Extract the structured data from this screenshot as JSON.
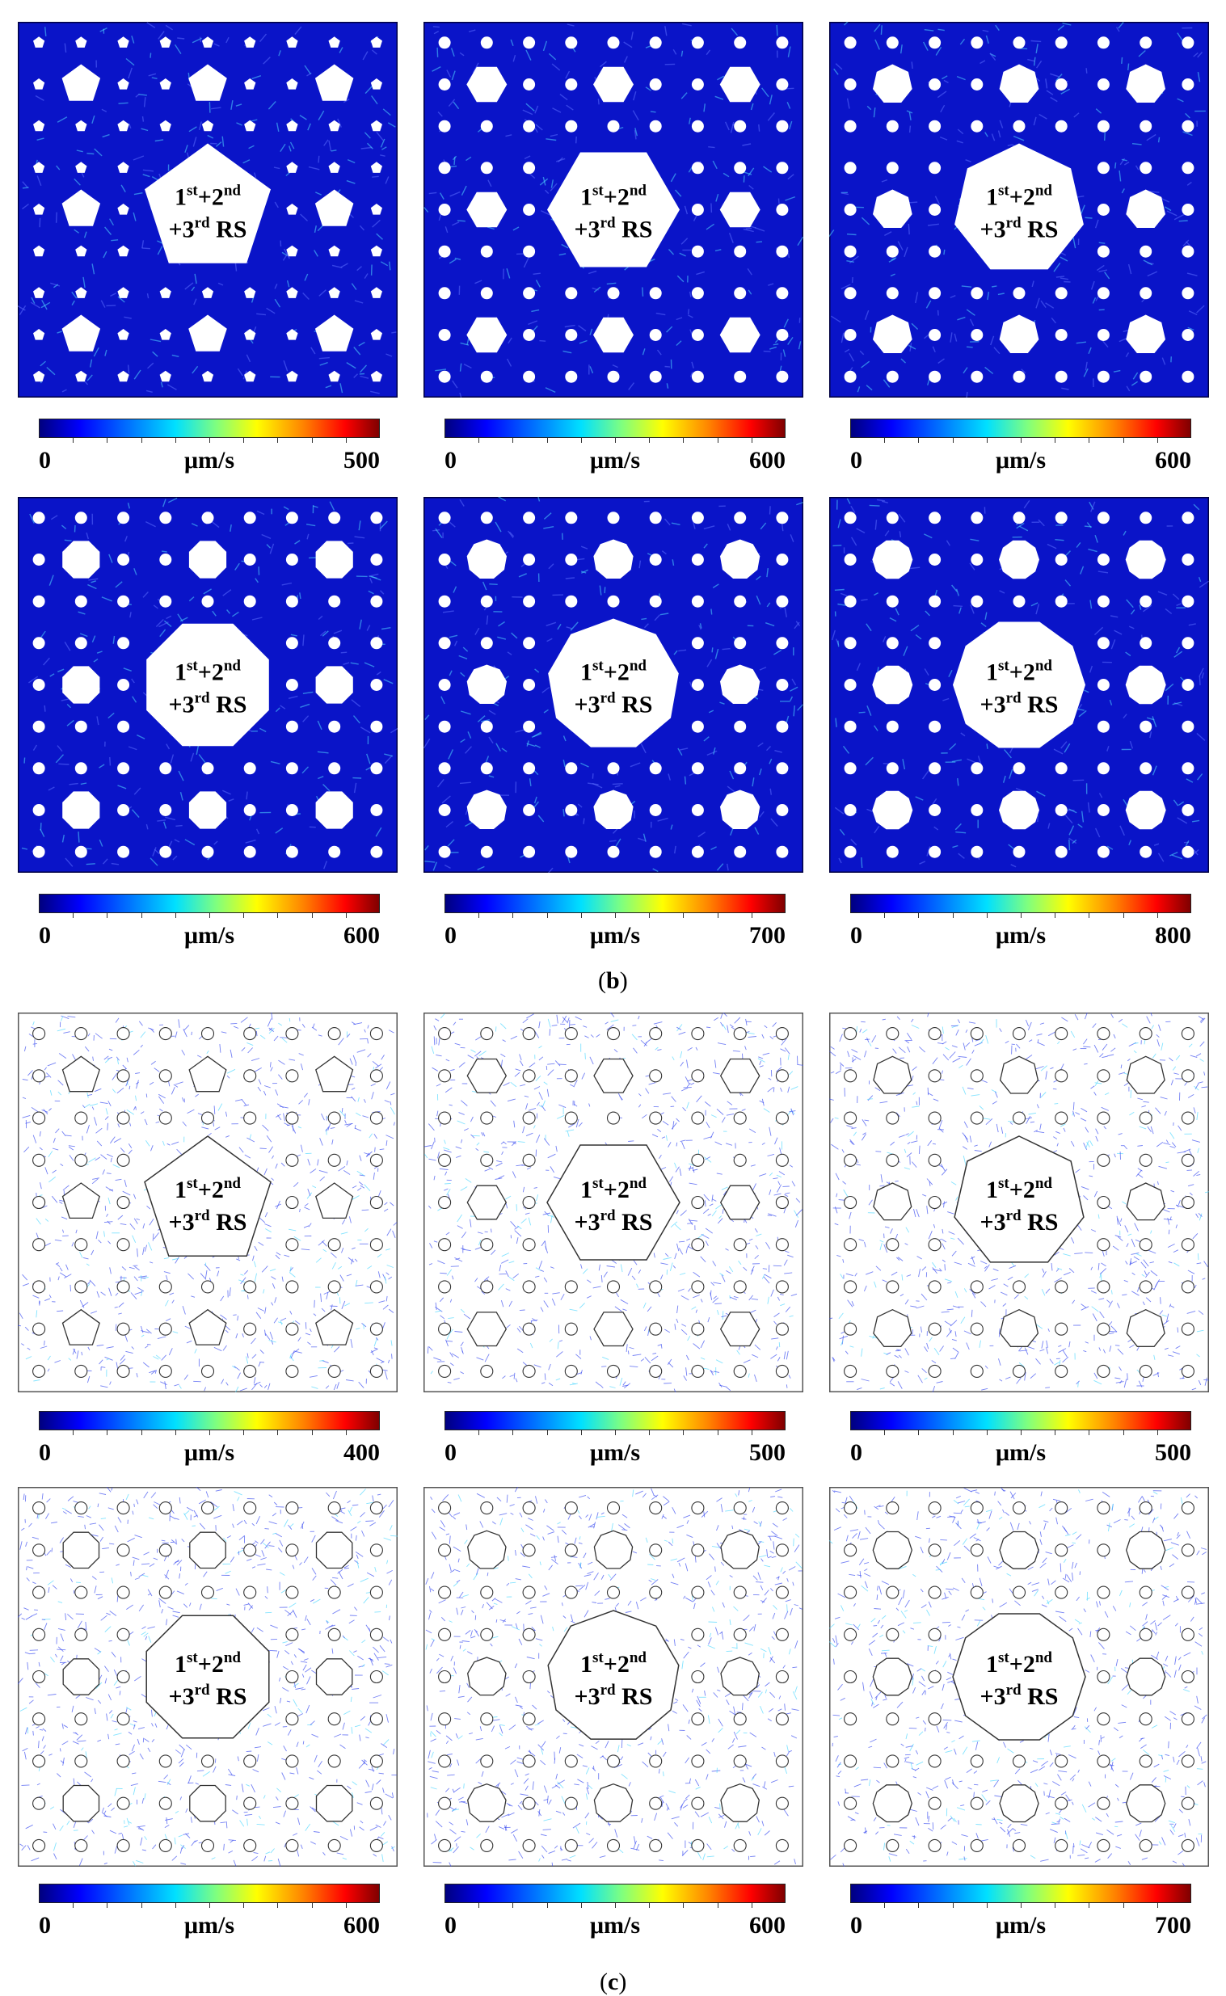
{
  "panels": [
    {
      "sides": 5,
      "label_sup1": "st",
      "label_sup2": "nd",
      "label_sup3": "rd"
    },
    {
      "sides": 6
    },
    {
      "sides": 7
    },
    {
      "sides": 8
    },
    {
      "sides": 9
    },
    {
      "sides": 10
    }
  ],
  "center_label": {
    "n1": "1",
    "s1": "st",
    "plus1": "+2",
    "s2": "nd",
    "plus2": "+3",
    "s3": "rd",
    "rs": " RS"
  },
  "sections": {
    "b": {
      "caption_open": "(",
      "caption_letter": "b",
      "caption_close": ")",
      "colorbars": [
        {
          "min": "0",
          "unit": "μm/s",
          "max": "500"
        },
        {
          "min": "0",
          "unit": "μm/s",
          "max": "600"
        },
        {
          "min": "0",
          "unit": "μm/s",
          "max": "600"
        },
        {
          "min": "0",
          "unit": "μm/s",
          "max": "600"
        },
        {
          "min": "0",
          "unit": "μm/s",
          "max": "700"
        },
        {
          "min": "0",
          "unit": "μm/s",
          "max": "800"
        }
      ]
    },
    "c": {
      "caption_open": "(",
      "caption_letter": "c",
      "caption_close": ")",
      "colorbars": [
        {
          "min": "0",
          "unit": "μm/s",
          "max": "400"
        },
        {
          "min": "0",
          "unit": "μm/s",
          "max": "500"
        },
        {
          "min": "0",
          "unit": "μm/s",
          "max": "500"
        },
        {
          "min": "0",
          "unit": "μm/s",
          "max": "600"
        },
        {
          "min": "0",
          "unit": "μm/s",
          "max": "600"
        },
        {
          "min": "0",
          "unit": "μm/s",
          "max": "700"
        }
      ]
    }
  },
  "colors": {
    "field_dark": "#0a14c8",
    "field_light": "#ffffff",
    "arrow_blue": "#3a4cf0",
    "arrow_cyan": "#4fd8ff"
  }
}
